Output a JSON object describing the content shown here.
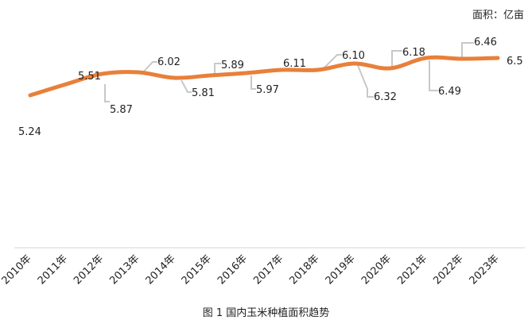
{
  "chart_data": {
    "type": "line",
    "title": "",
    "unit_label": "面积：亿亩",
    "caption": "图 1    国内玉米种植面积趋势",
    "categories": [
      "2010年",
      "2011年",
      "2012年",
      "2013年",
      "2014年",
      "2015年",
      "2016年",
      "2017年",
      "2018年",
      "2019年",
      "2020年",
      "2021年",
      "2022年",
      "2023年"
    ],
    "values": [
      5.24,
      5.51,
      5.87,
      6.02,
      5.81,
      5.89,
      5.97,
      6.11,
      6.1,
      6.32,
      6.18,
      6.49,
      6.46,
      6.5
    ],
    "value_labels": [
      "5.24",
      "5.51",
      "5.87",
      "6.02",
      "5.81",
      "5.89",
      "5.97",
      "6.11",
      "6.10",
      "6.32",
      "6.18",
      "6.49",
      "6.46",
      "6.5"
    ],
    "series_color": "#e8803a",
    "leader_color": "#c8c8c8"
  }
}
